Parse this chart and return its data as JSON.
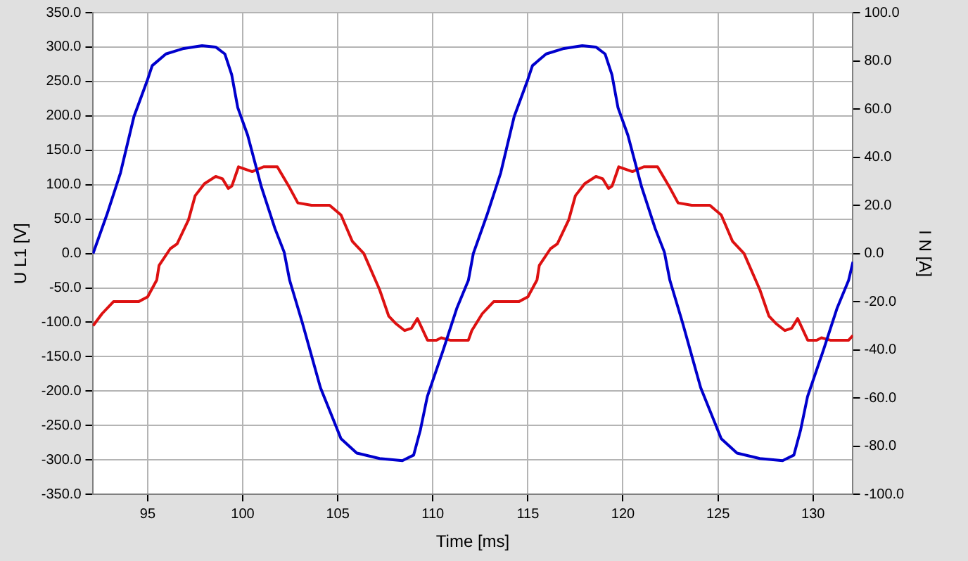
{
  "chart_data": {
    "type": "line",
    "xlabel": "Time [ms]",
    "ylabel": "U L1 [V]",
    "y2label": "I N [A]",
    "xlim": [
      92.1,
      132.1
    ],
    "xticks": [
      95,
      100,
      105,
      110,
      115,
      120,
      125,
      130
    ],
    "ylim": [
      -350,
      350
    ],
    "yticks": [
      {
        "value": -350,
        "label": "-350.0"
      },
      {
        "value": -300,
        "label": "-300.0"
      },
      {
        "value": -250,
        "label": "-250.0"
      },
      {
        "value": -200,
        "label": "-200.0"
      },
      {
        "value": -150,
        "label": "-150.0"
      },
      {
        "value": -100,
        "label": "-100.0"
      },
      {
        "value": -50,
        "label": "-50.0"
      },
      {
        "value": 0,
        "label": "0.0"
      },
      {
        "value": 50,
        "label": "50.0"
      },
      {
        "value": 100,
        "label": "100.0"
      },
      {
        "value": 150,
        "label": "150.0"
      },
      {
        "value": 200,
        "label": "200.0"
      },
      {
        "value": 250,
        "label": "250.0"
      },
      {
        "value": 300,
        "label": "300.0"
      },
      {
        "value": 350,
        "label": "350.0"
      }
    ],
    "y2lim": [
      -100,
      100
    ],
    "y2ticks": [
      {
        "value": -100,
        "label": "-100.0"
      },
      {
        "value": -80,
        "label": "-80.0"
      },
      {
        "value": -60,
        "label": "-60.0"
      },
      {
        "value": -40,
        "label": "-40.0"
      },
      {
        "value": -20,
        "label": "-20.0"
      },
      {
        "value": 0,
        "label": "0.0"
      },
      {
        "value": 20,
        "label": "20.0"
      },
      {
        "value": 40,
        "label": "40.0"
      },
      {
        "value": 60,
        "label": "60.0"
      },
      {
        "value": 80,
        "label": "80.0"
      },
      {
        "value": 100,
        "label": "100.0"
      }
    ],
    "grid": true,
    "legend": false,
    "marker": "none",
    "line_style": "solid",
    "series": [
      {
        "color": "#0000cc",
        "x": [
          92.13,
          92.85,
          93.57,
          94.28,
          95.0,
          95.24,
          95.96,
          96.9,
          97.86,
          98.58,
          99.06,
          99.42,
          99.74,
          100.26,
          100.98,
          101.7,
          102.18,
          102.47,
          103.13,
          104.09,
          105.17,
          106.0,
          107.2,
          108.4,
          108.99,
          109.35,
          109.71,
          110.55,
          111.27,
          111.87,
          112.13,
          112.85,
          113.57,
          114.28,
          115.0,
          115.24,
          115.96,
          116.9,
          117.86,
          118.58,
          119.06,
          119.42,
          119.74,
          120.26,
          120.98,
          121.7,
          122.18,
          122.47,
          123.13,
          124.09,
          125.17,
          126.0,
          127.2,
          128.4,
          128.99,
          129.35,
          129.71,
          130.55,
          131.27,
          131.87,
          132.1
        ],
        "values": [
          0,
          56,
          117,
          199,
          253,
          273,
          290,
          298,
          302,
          300,
          290,
          260,
          212,
          172,
          97,
          36,
          2,
          -39,
          -100,
          -195,
          -269,
          -290,
          -298,
          -301,
          -293,
          -256,
          -208,
          -140,
          -79,
          -39,
          0,
          56,
          117,
          199,
          253,
          273,
          290,
          298,
          302,
          300,
          290,
          260,
          212,
          172,
          97,
          36,
          2,
          -39,
          -100,
          -195,
          -269,
          -290,
          -298,
          -301,
          -293,
          -256,
          -208,
          -140,
          -79,
          -39,
          -12
        ]
      },
      {
        "color": "#dd1111",
        "axis": "y2",
        "x": [
          92.13,
          92.6,
          93.2,
          94.52,
          95.0,
          95.48,
          95.6,
          96.19,
          96.55,
          97.15,
          97.5,
          97.99,
          98.58,
          98.94,
          99.24,
          99.43,
          99.78,
          100.5,
          101.1,
          101.82,
          102.42,
          102.9,
          103.62,
          104.57,
          105.17,
          105.77,
          106.37,
          107.2,
          107.68,
          108.04,
          108.52,
          108.88,
          109.19,
          109.72,
          110.19,
          110.44,
          110.91,
          111.87,
          112.05,
          112.6,
          113.2,
          114.52,
          115.0,
          115.48,
          115.6,
          116.19,
          116.55,
          117.15,
          117.5,
          117.99,
          118.58,
          118.94,
          119.24,
          119.43,
          119.78,
          120.5,
          121.1,
          121.82,
          122.42,
          122.9,
          123.62,
          124.57,
          125.17,
          125.77,
          126.37,
          127.2,
          127.68,
          128.04,
          128.52,
          128.88,
          129.19,
          129.72,
          130.19,
          130.44,
          130.91,
          131.87,
          132.1
        ],
        "values": [
          -30,
          -25,
          -20,
          -20,
          -18,
          -11,
          -5,
          2,
          4,
          14,
          24,
          29,
          32,
          31,
          27,
          28,
          36,
          34,
          36,
          36,
          28,
          21,
          20,
          20,
          16,
          5,
          0,
          -15,
          -26,
          -29,
          -32,
          -31,
          -27,
          -36,
          -36,
          -35,
          -36,
          -36,
          -32,
          -25,
          -20,
          -20,
          -18,
          -11,
          -5,
          2,
          4,
          14,
          24,
          29,
          32,
          31,
          27,
          28,
          36,
          34,
          36,
          36,
          28,
          21,
          20,
          20,
          16,
          5,
          0,
          -15,
          -26,
          -29,
          -32,
          -31,
          -27,
          -36,
          -36,
          -35,
          -36,
          -36,
          -34
        ]
      }
    ]
  }
}
